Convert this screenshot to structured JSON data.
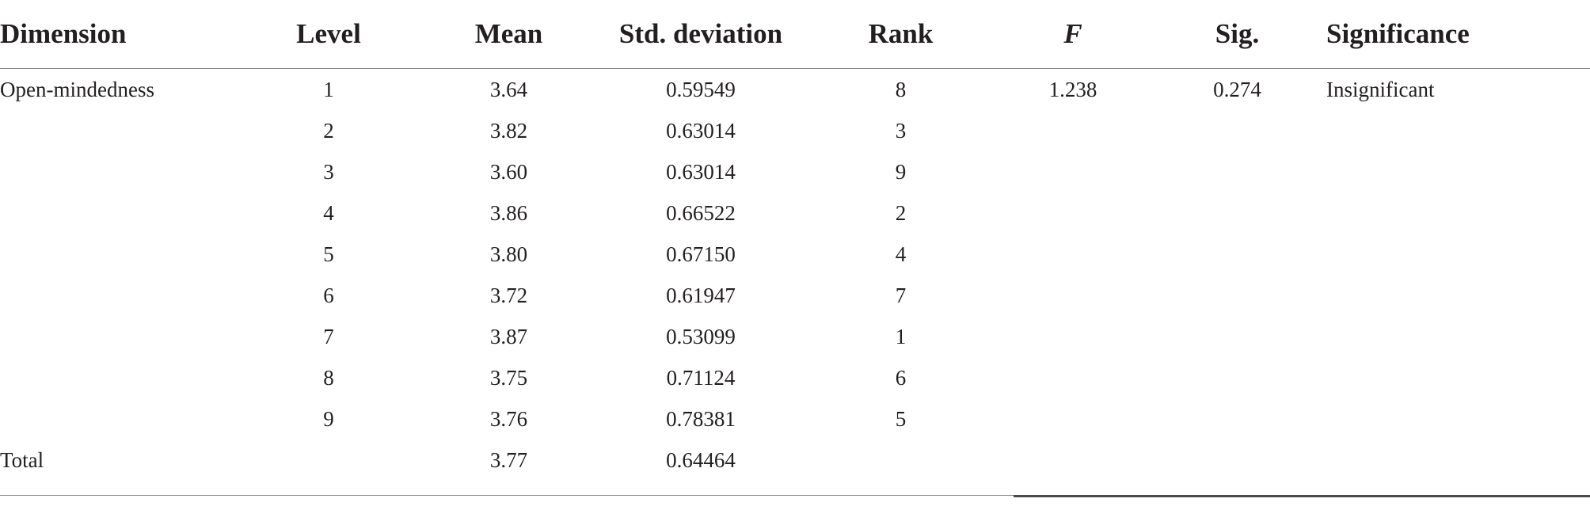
{
  "table": {
    "headers": {
      "dimension": "Dimension",
      "level": "Level",
      "mean": "Mean",
      "std": "Std. deviation",
      "rank": "Rank",
      "f": "F",
      "sig": "Sig.",
      "significance": "Significance"
    },
    "rows": [
      {
        "dimension": "Open-mindedness",
        "level": "1",
        "mean": "3.64",
        "std": "0.59549",
        "rank": "8",
        "f": "1.238",
        "sig": "0.274",
        "significance": "Insignificant"
      },
      {
        "dimension": "",
        "level": "2",
        "mean": "3.82",
        "std": "0.63014",
        "rank": "3",
        "f": "",
        "sig": "",
        "significance": ""
      },
      {
        "dimension": "",
        "level": "3",
        "mean": "3.60",
        "std": "0.63014",
        "rank": "9",
        "f": "",
        "sig": "",
        "significance": ""
      },
      {
        "dimension": "",
        "level": "4",
        "mean": "3.86",
        "std": "0.66522",
        "rank": "2",
        "f": "",
        "sig": "",
        "significance": ""
      },
      {
        "dimension": "",
        "level": "5",
        "mean": "3.80",
        "std": "0.67150",
        "rank": "4",
        "f": "",
        "sig": "",
        "significance": ""
      },
      {
        "dimension": "",
        "level": "6",
        "mean": "3.72",
        "std": "0.61947",
        "rank": "7",
        "f": "",
        "sig": "",
        "significance": ""
      },
      {
        "dimension": "",
        "level": "7",
        "mean": "3.87",
        "std": "0.53099",
        "rank": "1",
        "f": "",
        "sig": "",
        "significance": ""
      },
      {
        "dimension": "",
        "level": "8",
        "mean": "3.75",
        "std": "0.71124",
        "rank": "6",
        "f": "",
        "sig": "",
        "significance": ""
      },
      {
        "dimension": "",
        "level": "9",
        "mean": "3.76",
        "std": "0.78381",
        "rank": "5",
        "f": "",
        "sig": "",
        "significance": ""
      },
      {
        "dimension": "Total",
        "level": "",
        "mean": "3.77",
        "std": "0.64464",
        "rank": "",
        "f": "",
        "sig": "",
        "significance": ""
      }
    ]
  }
}
